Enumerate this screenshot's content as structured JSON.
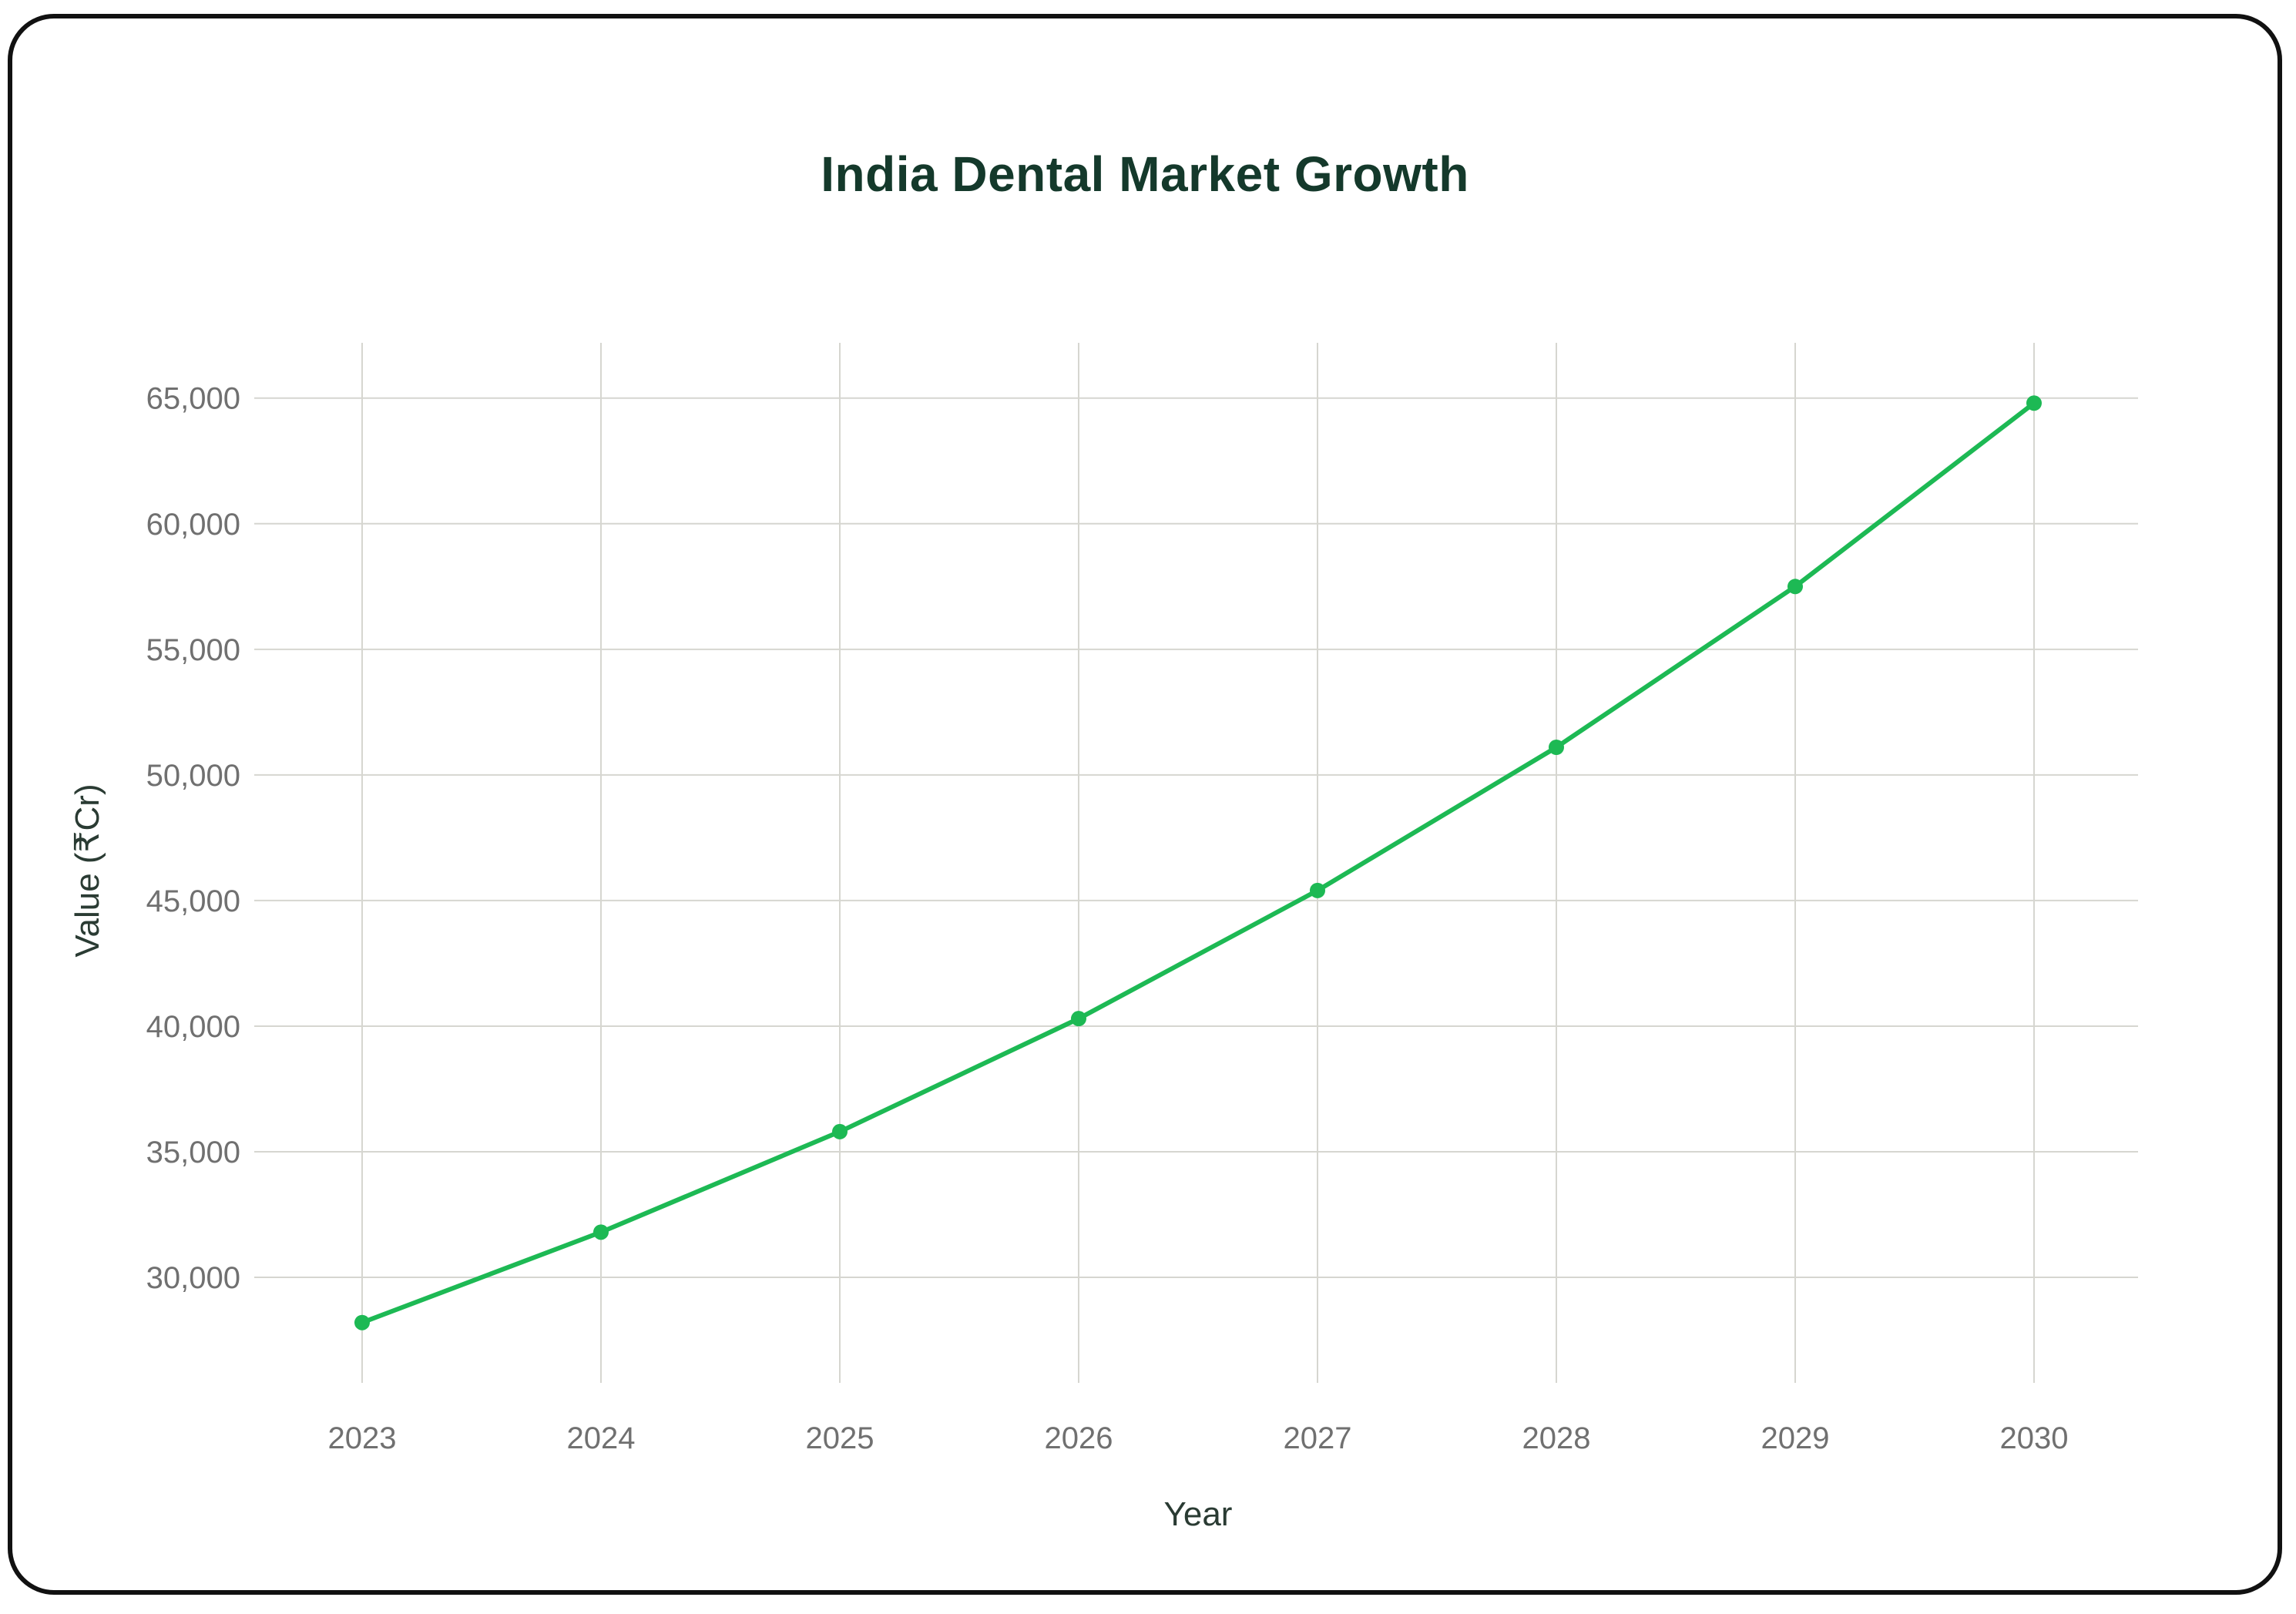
{
  "chart_data": {
    "type": "line",
    "title": "India Dental Market Growth",
    "xlabel": "Year",
    "ylabel": "Value (₹Cr)",
    "x": [
      "2023",
      "2024",
      "2025",
      "2026",
      "2027",
      "2028",
      "2029",
      "2030"
    ],
    "series": [
      {
        "name": "India Dental Market",
        "values": [
          28200,
          31800,
          35800,
          40300,
          45400,
          51100,
          57500,
          64800
        ]
      }
    ],
    "yticks": [
      30000,
      35000,
      40000,
      45000,
      50000,
      55000,
      60000,
      65000
    ],
    "ytick_labels": [
      "30,000",
      "35,000",
      "40,000",
      "45,000",
      "50,000",
      "55,000",
      "60,000",
      "65,000"
    ],
    "ylim": [
      25800,
      67200
    ],
    "grid": true,
    "legend": "none",
    "colors": {
      "line": "#1db954",
      "title": "#14392b",
      "grid": "#d6d6d0",
      "tick_text": "#707070",
      "axis_text": "#2a3b33"
    }
  }
}
